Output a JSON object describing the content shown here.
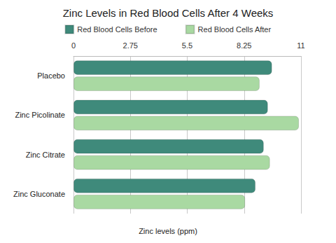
{
  "chart_data": {
    "type": "bar",
    "orientation": "horizontal",
    "title": "Zinc Levels in Red Blood Cells After 4 Weeks",
    "x_label": "Zinc levels (ppm)",
    "categories": [
      "Placebo",
      "Zinc Picolinate",
      "Zinc Citrate",
      "Zinc Gluconate"
    ],
    "series": [
      {
        "name": "Red Blood Cells Before",
        "color": "#3f8a7b",
        "values": [
          9.6,
          9.4,
          9.2,
          8.8
        ]
      },
      {
        "name": "Red Blood Cells After",
        "color": "#a9d9a2",
        "values": [
          9.0,
          10.9,
          9.5,
          8.3
        ]
      }
    ],
    "xlim": [
      0,
      11
    ],
    "xticks": [
      0,
      2.75,
      5.5,
      8.25,
      11
    ],
    "grid": true,
    "legend": "top"
  }
}
